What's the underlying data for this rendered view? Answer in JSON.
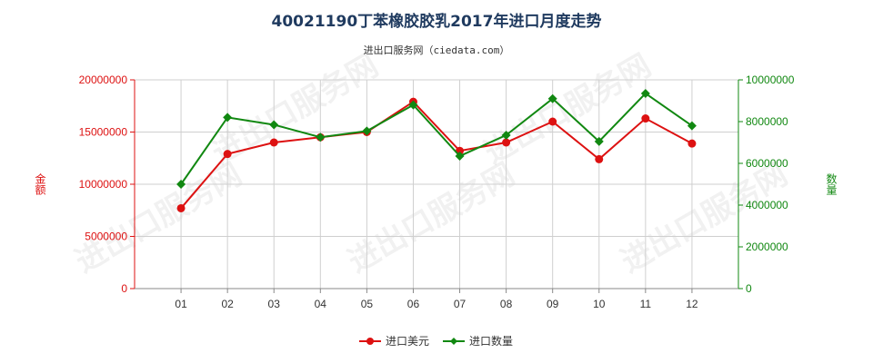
{
  "chart_data": {
    "type": "line",
    "title": "40021190丁苯橡胶胶乳2017年进口月度走势",
    "subtitle": "进出口服务网（ciedata.com）",
    "watermark": "进出口服务网",
    "categories": [
      "01",
      "02",
      "03",
      "04",
      "05",
      "06",
      "07",
      "08",
      "09",
      "10",
      "11",
      "12"
    ],
    "y_left": {
      "label": "金额",
      "min": 0,
      "max": 20000000,
      "ticks": [
        0,
        5000000,
        10000000,
        15000000,
        20000000
      ],
      "color": "#dd1111"
    },
    "y_right": {
      "label": "数量",
      "min": 0,
      "max": 10000000,
      "ticks": [
        0,
        2000000,
        4000000,
        6000000,
        8000000,
        10000000
      ],
      "color": "#118811"
    },
    "series": [
      {
        "name": "进口美元",
        "axis": "left",
        "color": "#dd1111",
        "values": [
          7700000,
          12900000,
          14000000,
          14500000,
          15000000,
          17900000,
          13200000,
          14000000,
          16000000,
          12400000,
          16300000,
          13900000
        ]
      },
      {
        "name": "进口数量",
        "axis": "right",
        "color": "#118811",
        "values": [
          5000000,
          8200000,
          7850000,
          7250000,
          7550000,
          8800000,
          6350000,
          7350000,
          9100000,
          7050000,
          9350000,
          7800000
        ]
      }
    ],
    "grid": true,
    "legend": "bottom-center"
  }
}
